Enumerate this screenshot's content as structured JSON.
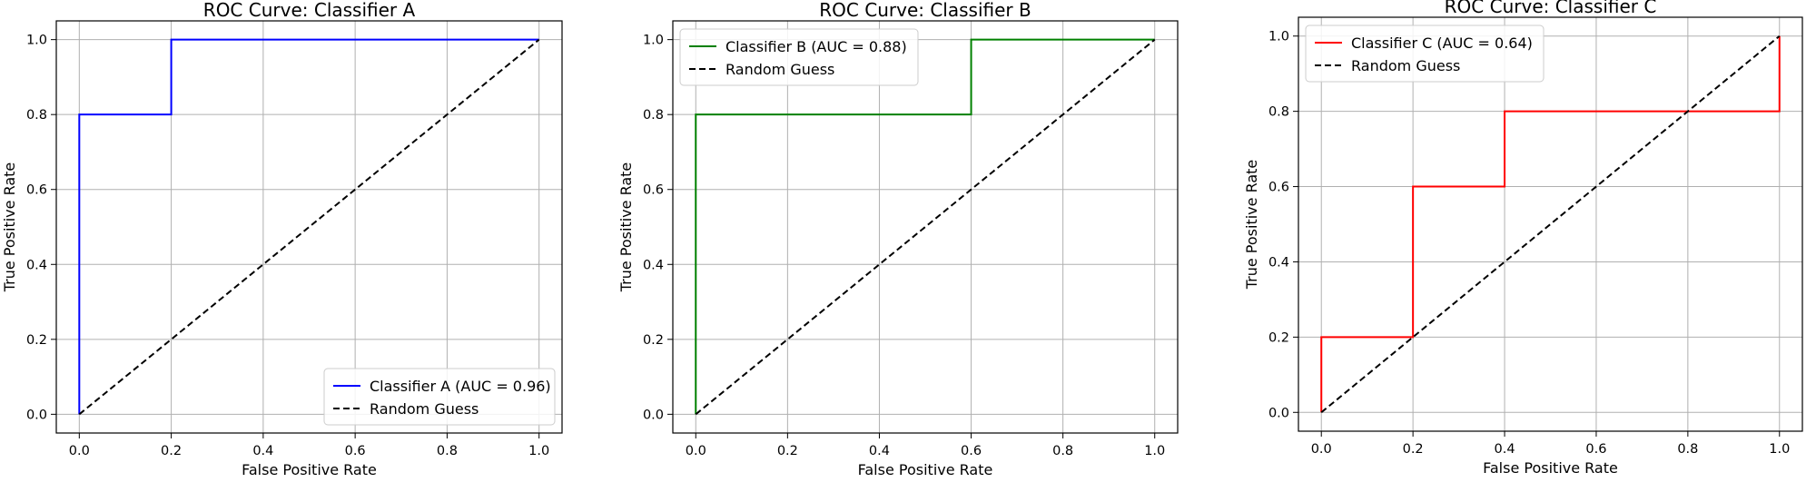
{
  "chart_data": [
    {
      "type": "line",
      "title": "ROC Curve: Classifier A",
      "xlabel": "False Positive Rate",
      "ylabel": "True Positive Rate",
      "xlim": [
        -0.05,
        1.05
      ],
      "ylim": [
        -0.05,
        1.05
      ],
      "xticks": [
        "0.0",
        "0.2",
        "0.4",
        "0.6",
        "0.8",
        "1.0"
      ],
      "yticks": [
        "0.0",
        "0.2",
        "0.4",
        "0.6",
        "0.8",
        "1.0"
      ],
      "grid": true,
      "legend": "lower-right",
      "series": [
        {
          "name": "Classifier A (AUC = 0.96)",
          "color": "#0000ff",
          "style": "solid",
          "x": [
            0.0,
            0.0,
            0.2,
            0.2,
            1.0
          ],
          "y": [
            0.0,
            0.8,
            0.8,
            1.0,
            1.0
          ]
        },
        {
          "name": "Random Guess",
          "color": "#000000",
          "style": "dashed",
          "x": [
            0.0,
            1.0
          ],
          "y": [
            0.0,
            1.0
          ]
        }
      ]
    },
    {
      "type": "line",
      "title": "ROC Curve: Classifier B",
      "xlabel": "False Positive Rate",
      "ylabel": "True Positive Rate",
      "xlim": [
        -0.05,
        1.05
      ],
      "ylim": [
        -0.05,
        1.05
      ],
      "xticks": [
        "0.0",
        "0.2",
        "0.4",
        "0.6",
        "0.8",
        "1.0"
      ],
      "yticks": [
        "0.0",
        "0.2",
        "0.4",
        "0.6",
        "0.8",
        "1.0"
      ],
      "grid": true,
      "legend": "upper-left",
      "series": [
        {
          "name": "Classifier B (AUC = 0.88)",
          "color": "#008000",
          "style": "solid",
          "x": [
            0.0,
            0.0,
            0.6,
            0.6,
            1.0
          ],
          "y": [
            0.0,
            0.8,
            0.8,
            1.0,
            1.0
          ]
        },
        {
          "name": "Random Guess",
          "color": "#000000",
          "style": "dashed",
          "x": [
            0.0,
            1.0
          ],
          "y": [
            0.0,
            1.0
          ]
        }
      ]
    },
    {
      "type": "line",
      "title": "ROC Curve: Classifier C",
      "xlabel": "False Positive Rate",
      "ylabel": "True Positive Rate",
      "xlim": [
        -0.05,
        1.05
      ],
      "ylim": [
        -0.05,
        1.05
      ],
      "xticks": [
        "0.0",
        "0.2",
        "0.4",
        "0.6",
        "0.8",
        "1.0"
      ],
      "yticks": [
        "0.0",
        "0.2",
        "0.4",
        "0.6",
        "0.8",
        "1.0"
      ],
      "grid": true,
      "legend": "upper-left",
      "series": [
        {
          "name": "Classifier C (AUC = 0.64)",
          "color": "#ff0000",
          "style": "solid",
          "x": [
            0.0,
            0.0,
            0.2,
            0.2,
            0.4,
            0.4,
            1.0,
            1.0
          ],
          "y": [
            0.0,
            0.2,
            0.2,
            0.6,
            0.6,
            0.8,
            0.8,
            1.0
          ]
        },
        {
          "name": "Random Guess",
          "color": "#000000",
          "style": "dashed",
          "x": [
            0.0,
            1.0
          ],
          "y": [
            0.0,
            1.0
          ]
        }
      ]
    }
  ]
}
